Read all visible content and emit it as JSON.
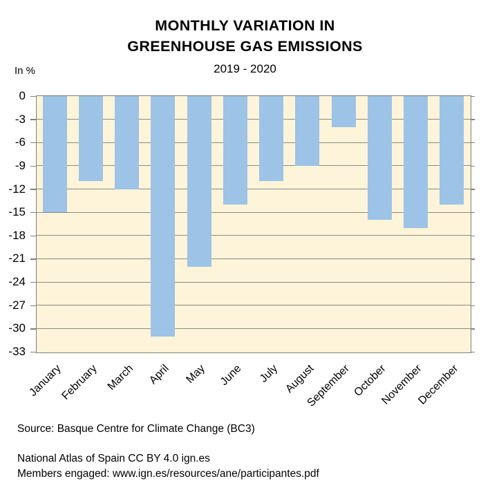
{
  "title": {
    "line1": "MONTHLY VARIATION IN",
    "line2": "GREENHOUSE GAS EMISSIONS",
    "subtitle": "2019 - 2020"
  },
  "unit_label": "In %",
  "chart_data": {
    "type": "bar",
    "title": "MONTHLY VARIATION IN GREENHOUSE GAS EMISSIONS",
    "subtitle": "2019 - 2020",
    "ylabel": "In %",
    "categories": [
      "January",
      "February",
      "March",
      "April",
      "May",
      "June",
      "July",
      "August",
      "September",
      "October",
      "November",
      "December"
    ],
    "values": [
      -15,
      -11,
      -12,
      -31,
      -22,
      -14,
      -11,
      -9,
      -4,
      -16,
      -17,
      -14
    ],
    "ylim": [
      -33,
      0
    ],
    "ytick_step": 3,
    "yticks": [
      0,
      -3,
      -6,
      -9,
      -12,
      -15,
      -18,
      -21,
      -24,
      -27,
      -30,
      -33
    ],
    "grid": true,
    "legend": "none",
    "bar_color": "#9DC3E6",
    "plot_bg_color": "#FDF4D9",
    "grid_color": "#8a8a84",
    "frame_color": "#7f7f78"
  },
  "footer": {
    "source": "Source: Basque Centre for Climate Change (BC3)",
    "attribution": "National Atlas of Spain CC BY 4.0 ign.es",
    "members": "Members engaged: www.ign.es/resources/ane/participantes.pdf"
  }
}
